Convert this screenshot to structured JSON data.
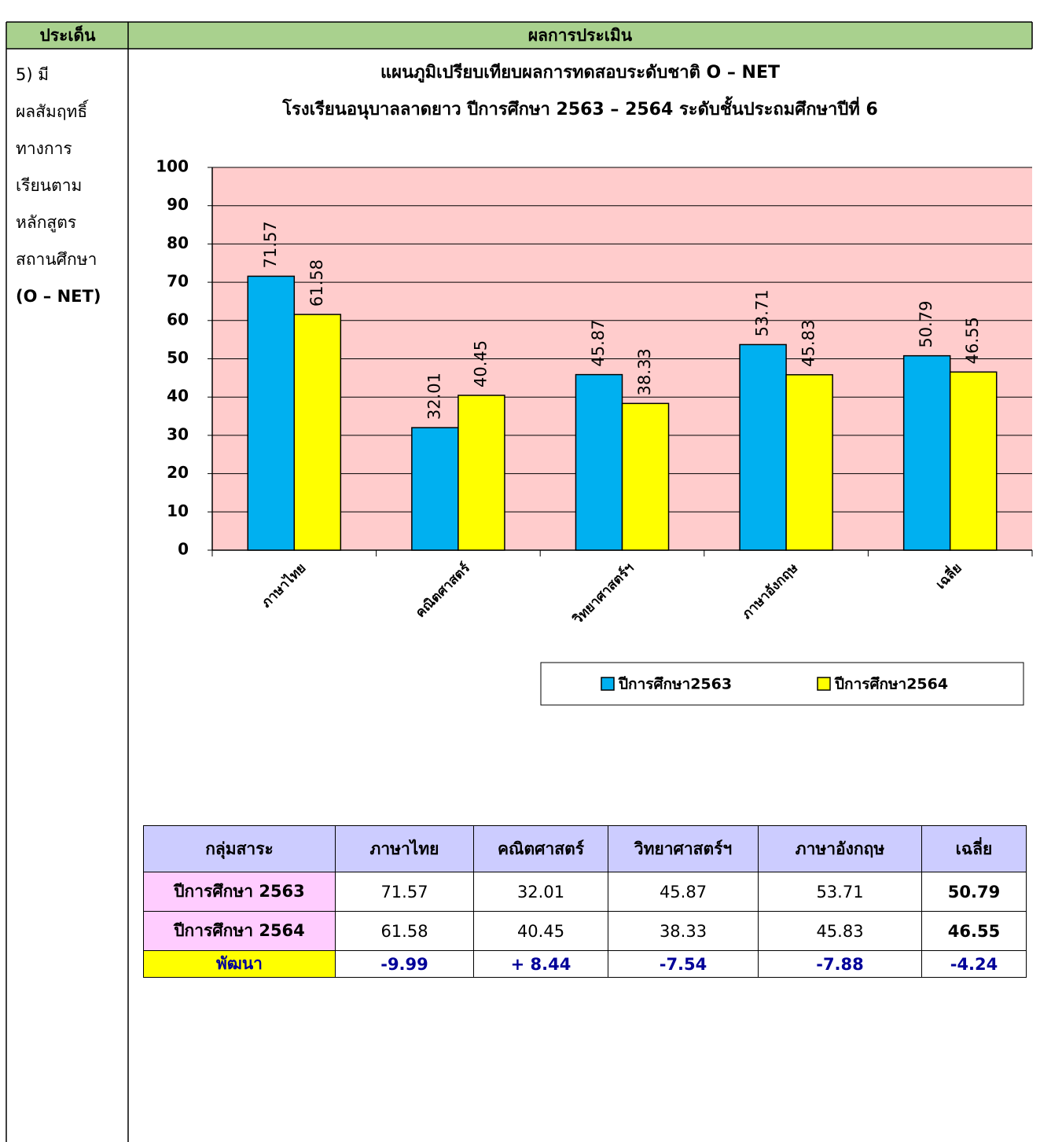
{
  "header": {
    "issue": "ประเด็น",
    "result": "ผลการประเมิน"
  },
  "issue_lines": [
    "5) มี",
    "ผลสัมฤทธิ์",
    "ทางการ",
    "เรียนตาม",
    "หลักสูตร",
    "สถานศึกษา",
    "(O – NET)"
  ],
  "chart_data": {
    "type": "bar",
    "title": "แผนภูมิเปรียบเทียบผลการทดสอบระดับชาติ O – NET",
    "subtitle": "โรงเรียนอนุบาลลาดยาว ปีการศึกษา 2563 – 2564  ระดับชั้นประถมศึกษาปีที่ 6",
    "categories": [
      "ภาษาไทย",
      "คณิตศาสตร์",
      "วิทยาศาสตร์ฯ",
      "ภาษาอังกฤษ",
      "เฉลี่ย"
    ],
    "series": [
      {
        "name": "ปีการศึกษา2563",
        "color": "#00b0f0",
        "values": [
          71.57,
          32.01,
          45.87,
          53.71,
          50.79
        ]
      },
      {
        "name": "ปีการศึกษา2564",
        "color": "#ffff00",
        "values": [
          61.58,
          40.45,
          38.33,
          45.83,
          46.55
        ]
      }
    ],
    "ylim": [
      0,
      100
    ],
    "yticks": [
      0,
      10,
      20,
      30,
      40,
      50,
      60,
      70,
      80,
      90,
      100
    ],
    "grid": true,
    "plot_background": "#ffcccc",
    "legend": "bottom-right"
  },
  "table": {
    "header": [
      "กลุ่มสาระ",
      "ภาษาไทย",
      "คณิตศาสตร์",
      "วิทยาศาสตร์ฯ",
      "ภาษาอังกฤษ",
      "เฉลี่ย"
    ],
    "rows": [
      [
        "ปีการศึกษา 2563",
        "71.57",
        "32.01",
        "45.87",
        "53.71",
        "50.79"
      ],
      [
        "ปีการศึกษา 2564",
        "61.58",
        "40.45",
        "38.33",
        "45.83",
        "46.55"
      ],
      [
        "พัฒนา",
        "-9.99",
        "+ 8.44",
        "-7.54",
        "-7.88",
        "-4.24"
      ]
    ]
  }
}
